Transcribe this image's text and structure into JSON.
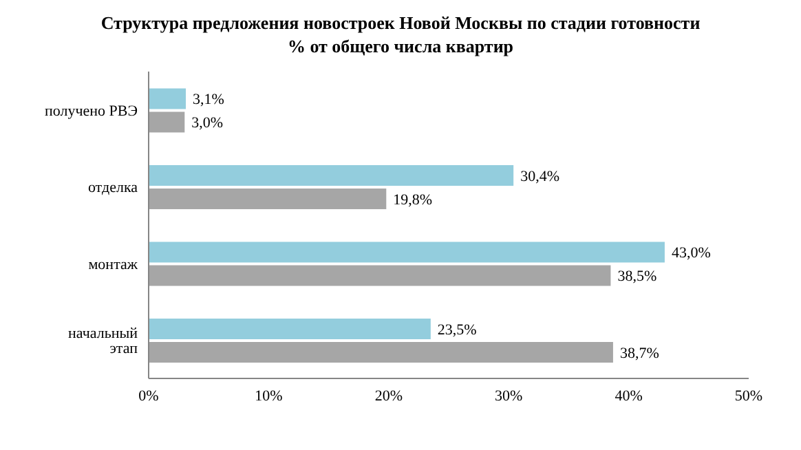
{
  "chart_data": {
    "type": "bar",
    "orientation": "horizontal",
    "title": "Структура  предложения новостроек Новой Москвы по стадии готовности",
    "subtitle": "% от общего числа квартир",
    "categories": [
      "получено РВЭ",
      "отделка",
      "монтаж",
      "начальный этап"
    ],
    "series": [
      {
        "color": "#93cddd",
        "values": [
          3.1,
          30.4,
          43.0,
          23.5
        ],
        "value_labels": [
          "3,1%",
          "30,4%",
          "43,0%",
          "23,5%"
        ]
      },
      {
        "color": "#a6a6a6",
        "values": [
          3.0,
          19.8,
          38.5,
          38.7
        ],
        "value_labels": [
          "3,0%",
          "19,8%",
          "38,5%",
          "38,7%"
        ]
      }
    ],
    "xlim": [
      0,
      50
    ],
    "xticks": [
      {
        "value": 0,
        "label": "0%"
      },
      {
        "value": 10,
        "label": "10%"
      },
      {
        "value": 20,
        "label": "20%"
      },
      {
        "value": 30,
        "label": "30%"
      },
      {
        "value": 40,
        "label": "40%"
      },
      {
        "value": 50,
        "label": "50%"
      }
    ],
    "grid": false,
    "legend": false
  }
}
